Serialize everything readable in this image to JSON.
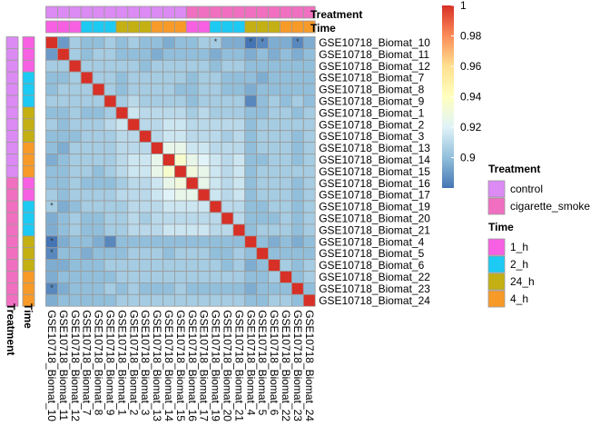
{
  "chart_data": {
    "type": "heatmap",
    "samples": [
      "GSE10718_Biomat_10",
      "GSE10718_Biomat_11",
      "GSE10718_Biomat_12",
      "GSE10718_Biomat_7",
      "GSE10718_Biomat_8",
      "GSE10718_Biomat_9",
      "GSE10718_Biomat_1",
      "GSE10718_Biomat_2",
      "GSE10718_Biomat_3",
      "GSE10718_Biomat_13",
      "GSE10718_Biomat_14",
      "GSE10718_Biomat_15",
      "GSE10718_Biomat_16",
      "GSE10718_Biomat_17",
      "GSE10718_Biomat_19",
      "GSE10718_Biomat_20",
      "GSE10718_Biomat_21",
      "GSE10718_Biomat_4",
      "GSE10718_Biomat_5",
      "GSE10718_Biomat_6",
      "GSE10718_Biomat_22",
      "GSE10718_Biomat_23",
      "GSE10718_Biomat_24"
    ],
    "treatment": [
      "control",
      "control",
      "control",
      "control",
      "control",
      "control",
      "control",
      "control",
      "control",
      "control",
      "control",
      "control",
      "cigarette_smoke",
      "cigarette_smoke",
      "cigarette_smoke",
      "cigarette_smoke",
      "cigarette_smoke",
      "cigarette_smoke",
      "cigarette_smoke",
      "cigarette_smoke",
      "cigarette_smoke",
      "cigarette_smoke",
      "cigarette_smoke"
    ],
    "time": [
      "1_h",
      "1_h",
      "1_h",
      "2_h",
      "2_h",
      "2_h",
      "24_h",
      "24_h",
      "24_h",
      "4_h",
      "4_h",
      "4_h",
      "1_h",
      "1_h",
      "2_h",
      "2_h",
      "2_h",
      "24_h",
      "24_h",
      "24_h",
      "4_h",
      "4_h",
      "4_h"
    ],
    "values": [
      [
        1.0,
        0.89,
        0.905,
        0.9,
        0.9,
        0.905,
        0.9,
        0.905,
        0.9,
        0.9,
        0.895,
        0.9,
        0.9,
        0.905,
        0.905,
        0.895,
        0.895,
        0.88,
        0.885,
        0.895,
        0.895,
        0.885,
        0.895
      ],
      [
        0.89,
        1.0,
        0.905,
        0.9,
        0.905,
        0.905,
        0.9,
        0.9,
        0.9,
        0.895,
        0.9,
        0.9,
        0.9,
        0.9,
        0.895,
        0.9,
        0.9,
        0.895,
        0.9,
        0.895,
        0.9,
        0.895,
        0.9
      ],
      [
        0.905,
        0.905,
        1.0,
        0.905,
        0.905,
        0.905,
        0.905,
        0.905,
        0.9,
        0.905,
        0.905,
        0.905,
        0.905,
        0.905,
        0.9,
        0.905,
        0.905,
        0.9,
        0.9,
        0.9,
        0.9,
        0.9,
        0.9
      ],
      [
        0.9,
        0.9,
        0.905,
        1.0,
        0.905,
        0.905,
        0.9,
        0.905,
        0.905,
        0.905,
        0.905,
        0.905,
        0.9,
        0.905,
        0.905,
        0.9,
        0.9,
        0.9,
        0.895,
        0.9,
        0.9,
        0.9,
        0.9
      ],
      [
        0.9,
        0.905,
        0.905,
        0.905,
        1.0,
        0.905,
        0.9,
        0.905,
        0.905,
        0.905,
        0.905,
        0.9,
        0.9,
        0.905,
        0.905,
        0.9,
        0.9,
        0.895,
        0.9,
        0.9,
        0.9,
        0.9,
        0.9
      ],
      [
        0.905,
        0.905,
        0.905,
        0.905,
        0.905,
        1.0,
        0.905,
        0.91,
        0.905,
        0.905,
        0.905,
        0.905,
        0.9,
        0.905,
        0.905,
        0.905,
        0.905,
        0.885,
        0.9,
        0.905,
        0.9,
        0.905,
        0.9
      ],
      [
        0.9,
        0.9,
        0.905,
        0.9,
        0.9,
        0.905,
        1.0,
        0.915,
        0.91,
        0.91,
        0.91,
        0.91,
        0.905,
        0.91,
        0.905,
        0.905,
        0.905,
        0.9,
        0.9,
        0.905,
        0.905,
        0.9,
        0.905
      ],
      [
        0.905,
        0.9,
        0.905,
        0.905,
        0.905,
        0.91,
        0.915,
        1.0,
        0.91,
        0.91,
        0.915,
        0.915,
        0.91,
        0.91,
        0.91,
        0.91,
        0.91,
        0.9,
        0.905,
        0.905,
        0.905,
        0.905,
        0.905
      ],
      [
        0.9,
        0.9,
        0.9,
        0.905,
        0.905,
        0.905,
        0.91,
        0.91,
        1.0,
        0.91,
        0.915,
        0.915,
        0.91,
        0.91,
        0.91,
        0.905,
        0.91,
        0.9,
        0.905,
        0.905,
        0.905,
        0.9,
        0.905
      ],
      [
        0.9,
        0.895,
        0.905,
        0.905,
        0.905,
        0.905,
        0.91,
        0.91,
        0.91,
        1.0,
        0.925,
        0.925,
        0.915,
        0.915,
        0.91,
        0.91,
        0.91,
        0.9,
        0.905,
        0.905,
        0.905,
        0.9,
        0.905
      ],
      [
        0.895,
        0.9,
        0.905,
        0.905,
        0.905,
        0.905,
        0.91,
        0.915,
        0.915,
        0.925,
        1.0,
        0.935,
        0.925,
        0.92,
        0.915,
        0.91,
        0.915,
        0.9,
        0.9,
        0.905,
        0.905,
        0.9,
        0.905
      ],
      [
        0.9,
        0.9,
        0.905,
        0.905,
        0.9,
        0.905,
        0.91,
        0.915,
        0.915,
        0.925,
        0.935,
        1.0,
        0.93,
        0.925,
        0.915,
        0.91,
        0.915,
        0.9,
        0.905,
        0.905,
        0.905,
        0.905,
        0.905
      ],
      [
        0.9,
        0.9,
        0.905,
        0.9,
        0.9,
        0.9,
        0.905,
        0.91,
        0.91,
        0.915,
        0.925,
        0.93,
        1.0,
        0.925,
        0.915,
        0.91,
        0.915,
        0.9,
        0.905,
        0.905,
        0.905,
        0.9,
        0.905
      ],
      [
        0.905,
        0.9,
        0.905,
        0.905,
        0.905,
        0.905,
        0.91,
        0.91,
        0.91,
        0.915,
        0.92,
        0.925,
        0.925,
        1.0,
        0.915,
        0.91,
        0.915,
        0.9,
        0.905,
        0.905,
        0.905,
        0.9,
        0.905
      ],
      [
        0.905,
        0.895,
        0.9,
        0.905,
        0.905,
        0.905,
        0.905,
        0.91,
        0.91,
        0.91,
        0.915,
        0.915,
        0.915,
        0.915,
        1.0,
        0.91,
        0.91,
        0.9,
        0.9,
        0.905,
        0.905,
        0.9,
        0.905
      ],
      [
        0.895,
        0.9,
        0.905,
        0.9,
        0.9,
        0.905,
        0.905,
        0.91,
        0.905,
        0.91,
        0.91,
        0.91,
        0.91,
        0.91,
        0.91,
        1.0,
        0.91,
        0.9,
        0.9,
        0.9,
        0.905,
        0.9,
        0.905
      ],
      [
        0.895,
        0.9,
        0.905,
        0.9,
        0.9,
        0.905,
        0.905,
        0.91,
        0.91,
        0.91,
        0.915,
        0.915,
        0.915,
        0.915,
        0.91,
        0.91,
        1.0,
        0.9,
        0.905,
        0.905,
        0.905,
        0.9,
        0.905
      ],
      [
        0.88,
        0.895,
        0.9,
        0.9,
        0.895,
        0.885,
        0.9,
        0.9,
        0.9,
        0.9,
        0.9,
        0.9,
        0.9,
        0.9,
        0.9,
        0.9,
        0.9,
        1.0,
        0.9,
        0.895,
        0.9,
        0.895,
        0.9
      ],
      [
        0.885,
        0.9,
        0.9,
        0.895,
        0.9,
        0.9,
        0.9,
        0.905,
        0.905,
        0.905,
        0.9,
        0.905,
        0.905,
        0.905,
        0.9,
        0.9,
        0.905,
        0.9,
        1.0,
        0.9,
        0.9,
        0.9,
        0.9
      ],
      [
        0.895,
        0.895,
        0.9,
        0.9,
        0.9,
        0.905,
        0.905,
        0.905,
        0.905,
        0.905,
        0.905,
        0.905,
        0.905,
        0.905,
        0.905,
        0.9,
        0.905,
        0.895,
        0.9,
        1.0,
        0.905,
        0.9,
        0.905
      ],
      [
        0.895,
        0.9,
        0.9,
        0.9,
        0.9,
        0.9,
        0.905,
        0.905,
        0.905,
        0.905,
        0.905,
        0.905,
        0.905,
        0.905,
        0.905,
        0.905,
        0.905,
        0.9,
        0.9,
        0.905,
        1.0,
        0.9,
        0.905
      ],
      [
        0.885,
        0.895,
        0.9,
        0.9,
        0.9,
        0.905,
        0.9,
        0.905,
        0.9,
        0.9,
        0.9,
        0.905,
        0.9,
        0.9,
        0.9,
        0.9,
        0.9,
        0.895,
        0.9,
        0.9,
        0.9,
        1.0,
        0.9
      ],
      [
        0.895,
        0.9,
        0.9,
        0.9,
        0.9,
        0.9,
        0.905,
        0.905,
        0.905,
        0.905,
        0.905,
        0.905,
        0.905,
        0.905,
        0.905,
        0.905,
        0.905,
        0.9,
        0.9,
        0.905,
        0.905,
        0.9,
        1.0
      ]
    ],
    "marked_cells": [
      [
        0,
        14
      ],
      [
        0,
        17
      ],
      [
        0,
        18
      ],
      [
        0,
        21
      ],
      [
        14,
        0
      ],
      [
        17,
        0
      ],
      [
        18,
        0
      ],
      [
        21,
        0
      ]
    ],
    "color_scale": {
      "min": 0.88,
      "max": 1.0,
      "ticks": [
        "1",
        "0.98",
        "0.96",
        "0.94",
        "0.92",
        "0.9"
      ],
      "tick_values": [
        1.0,
        0.98,
        0.96,
        0.94,
        0.92,
        0.9
      ],
      "stops": [
        {
          "v": 0.88,
          "color": "#4575b4"
        },
        {
          "v": 0.9,
          "color": "#91bfdb"
        },
        {
          "v": 0.92,
          "color": "#e0f3f8"
        },
        {
          "v": 0.94,
          "color": "#ffffbf"
        },
        {
          "v": 0.96,
          "color": "#fee090"
        },
        {
          "v": 0.98,
          "color": "#fc8d59"
        },
        {
          "v": 1.0,
          "color": "#d73027"
        }
      ]
    },
    "annotation_titles": {
      "treatment": "Treatment",
      "time": "Time"
    },
    "legend": {
      "treatment": {
        "title": "Treatment",
        "items": [
          {
            "label": "control",
            "color": "#dc8af4"
          },
          {
            "label": "cigarette_smoke",
            "color": "#f06fc0"
          }
        ]
      },
      "time": {
        "title": "Time",
        "items": [
          {
            "label": "1_h",
            "color": "#f760e3"
          },
          {
            "label": "2_h",
            "color": "#1ccaf3"
          },
          {
            "label": "24_h",
            "color": "#c4b012"
          },
          {
            "label": "4_h",
            "color": "#f79a28"
          }
        ]
      }
    }
  }
}
